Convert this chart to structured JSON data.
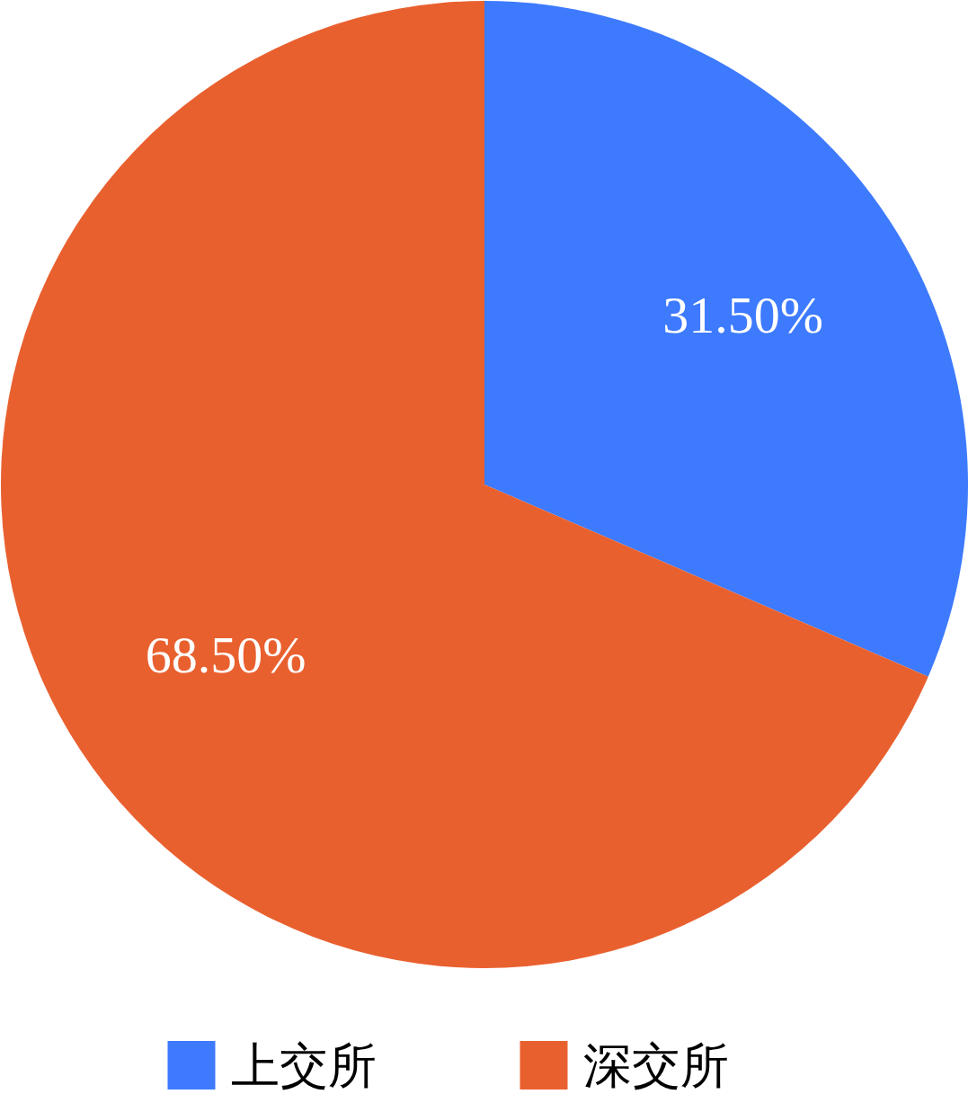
{
  "chart_data": {
    "type": "pie",
    "categories": [
      "上交所",
      "深交所"
    ],
    "values": [
      31.5,
      68.5
    ],
    "colors": [
      "#3d7afe",
      "#e9602f"
    ],
    "value_labels": [
      "31.50%",
      "68.50%"
    ],
    "legend": "bottom"
  }
}
